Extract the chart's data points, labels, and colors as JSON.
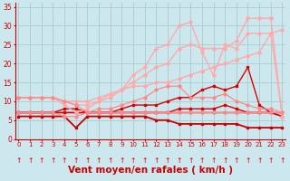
{
  "title": "Vent moyen/en rafales ( km/h )",
  "bg_color": "#cce8ee",
  "grid_color": "#aacccc",
  "x_values": [
    0,
    1,
    2,
    3,
    4,
    5,
    6,
    7,
    8,
    9,
    10,
    11,
    12,
    13,
    14,
    15,
    16,
    17,
    18,
    19,
    20,
    21,
    22,
    23
  ],
  "lines": [
    {
      "y": [
        7,
        7,
        7,
        7,
        7,
        7,
        7,
        7,
        7,
        7,
        7,
        7,
        7,
        7,
        7,
        7,
        7,
        7,
        7,
        7,
        7,
        7,
        7,
        7
      ],
      "color": "#dd0000",
      "lw": 1.0,
      "marker": "s",
      "ms": 1.8
    },
    {
      "y": [
        7,
        7,
        7,
        7,
        7,
        7,
        7,
        7,
        7,
        8,
        9,
        9,
        9,
        10,
        11,
        11,
        13,
        14,
        13,
        14,
        19,
        9,
        7,
        6
      ],
      "color": "#dd0000",
      "lw": 1.0,
      "marker": "s",
      "ms": 1.8
    },
    {
      "y": [
        6,
        6,
        6,
        6,
        6,
        3,
        6,
        6,
        6,
        6,
        6,
        6,
        5,
        5,
        4,
        4,
        4,
        4,
        4,
        4,
        3,
        3,
        3,
        3
      ],
      "color": "#cc0000",
      "lw": 1.3,
      "marker": "s",
      "ms": 1.5
    },
    {
      "y": [
        7,
        7,
        7,
        7,
        8,
        8,
        7,
        7,
        7,
        7,
        7,
        7,
        7,
        7,
        8,
        8,
        8,
        8,
        9,
        8,
        7,
        7,
        7,
        6
      ],
      "color": "#dd0000",
      "lw": 1.0,
      "marker": "s",
      "ms": 1.8
    },
    {
      "y": [
        7,
        7,
        7,
        7,
        6,
        6,
        7,
        7,
        7,
        7,
        7,
        7,
        7,
        7,
        7,
        7,
        7,
        7,
        7,
        7,
        7,
        7,
        7,
        7
      ],
      "color": "#ff8888",
      "lw": 0.9,
      "marker": "D",
      "ms": 1.8
    },
    {
      "y": [
        11,
        11,
        11,
        11,
        10,
        10,
        10,
        11,
        12,
        13,
        14,
        14,
        15,
        15,
        16,
        17,
        18,
        19,
        20,
        21,
        22,
        23,
        28,
        29
      ],
      "color": "#ffaaaa",
      "lw": 1.0,
      "marker": "D",
      "ms": 2.0
    },
    {
      "y": [
        11,
        11,
        11,
        11,
        10,
        9,
        9,
        10,
        11,
        13,
        15,
        17,
        19,
        20,
        24,
        25,
        24,
        24,
        24,
        26,
        32,
        32,
        32,
        6
      ],
      "color": "#ffaaaa",
      "lw": 1.0,
      "marker": "D",
      "ms": 2.0
    },
    {
      "y": [
        11,
        11,
        11,
        11,
        9,
        7,
        8,
        10,
        12,
        13,
        17,
        19,
        24,
        25,
        30,
        31,
        23,
        17,
        25,
        24,
        28,
        28,
        28,
        6
      ],
      "color": "#ffaaaa",
      "lw": 1.0,
      "marker": "D",
      "ms": 1.8
    },
    {
      "y": [
        11,
        11,
        11,
        11,
        10,
        9,
        7,
        8,
        8,
        9,
        10,
        11,
        13,
        14,
        14,
        11,
        11,
        11,
        12,
        10,
        9,
        8,
        8,
        7
      ],
      "color": "#ff8888",
      "lw": 0.9,
      "marker": "D",
      "ms": 1.8
    }
  ],
  "ylim": [
    0,
    36
  ],
  "yticks": [
    0,
    5,
    10,
    15,
    20,
    25,
    30,
    35
  ],
  "xlim": [
    -0.3,
    23.3
  ],
  "tick_color": "#cc0000",
  "label_color": "#cc0000",
  "xlabel_fontsize": 7.5,
  "arrow_color": "#cc0000"
}
